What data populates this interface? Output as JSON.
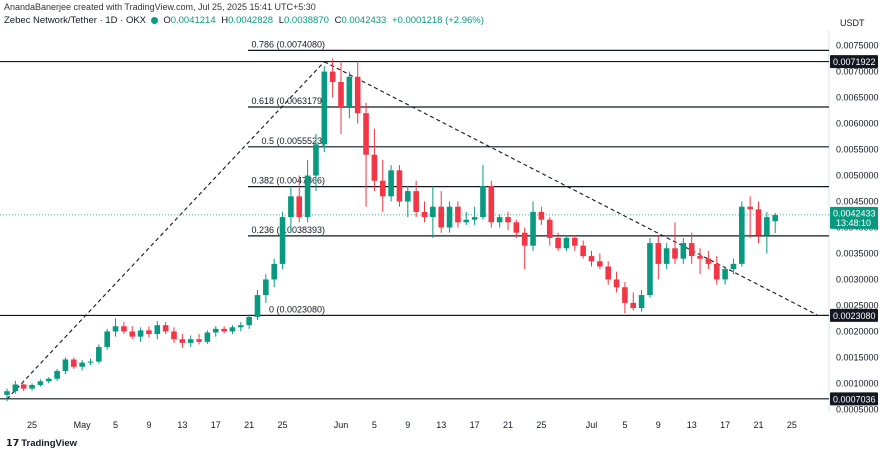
{
  "credit": "AnandaBanerjee created with TradingView.com, Jul 25, 2025 15:41 UTC+5:30",
  "header": {
    "symbol": "Zebec Network/Tether · 1D · OKX",
    "o_label": "O",
    "o": "0.0041214",
    "h_label": "H",
    "h": "0.0042828",
    "l_label": "L",
    "l": "0.0038870",
    "c_label": "C",
    "c": "0.0042433",
    "change": "+0.0001218 (+2.96%)"
  },
  "logo": "TradingView",
  "colors": {
    "up": "#089981",
    "down": "#f23645",
    "fib": "#131722",
    "trend": "#131722"
  },
  "chart_data": {
    "type": "candlestick",
    "currency": "USDT",
    "ylim": [
      0.00045,
      0.0078
    ],
    "y_ticks": [
      "0.0005000",
      "0.0010000",
      "0.0015000",
      "0.0020000",
      "0.0025000",
      "0.0030000",
      "0.0035000",
      "0.0040000",
      "0.0045000",
      "0.0050000",
      "0.0055000",
      "0.0060000",
      "0.0065000",
      "0.0070000",
      "0.0075000"
    ],
    "x_ticks": [
      {
        "label": "25",
        "i": 3
      },
      {
        "label": "May",
        "i": 9
      },
      {
        "label": "5",
        "i": 13
      },
      {
        "label": "9",
        "i": 17
      },
      {
        "label": "13",
        "i": 21
      },
      {
        "label": "17",
        "i": 25
      },
      {
        "label": "21",
        "i": 29
      },
      {
        "label": "25",
        "i": 33
      },
      {
        "label": "Jun",
        "i": 40
      },
      {
        "label": "5",
        "i": 44
      },
      {
        "label": "9",
        "i": 48
      },
      {
        "label": "13",
        "i": 52
      },
      {
        "label": "17",
        "i": 56
      },
      {
        "label": "21",
        "i": 60
      },
      {
        "label": "25",
        "i": 64
      },
      {
        "label": "Jul",
        "i": 70
      },
      {
        "label": "5",
        "i": 74
      },
      {
        "label": "9",
        "i": 78
      },
      {
        "label": "13",
        "i": 82
      },
      {
        "label": "17",
        "i": 86
      },
      {
        "label": "21",
        "i": 90
      },
      {
        "label": "25",
        "i": 94
      }
    ],
    "candles": [
      [
        0.00078,
        0.0009,
        0.00066,
        0.00085
      ],
      [
        0.00085,
        0.00105,
        0.0008,
        0.00098
      ],
      [
        0.00098,
        0.001,
        0.00085,
        0.0009
      ],
      [
        0.0009,
        0.001,
        0.00086,
        0.00097
      ],
      [
        0.00097,
        0.00108,
        0.00094,
        0.00104
      ],
      [
        0.00104,
        0.00112,
        0.001,
        0.00109
      ],
      [
        0.00109,
        0.00128,
        0.00105,
        0.00124
      ],
      [
        0.00124,
        0.0015,
        0.00118,
        0.00146
      ],
      [
        0.00146,
        0.0015,
        0.00128,
        0.00132
      ],
      [
        0.00132,
        0.00145,
        0.00125,
        0.0014
      ],
      [
        0.0014,
        0.00148,
        0.00135,
        0.00142
      ],
      [
        0.00142,
        0.00175,
        0.00138,
        0.0017
      ],
      [
        0.0017,
        0.00205,
        0.00165,
        0.002
      ],
      [
        0.002,
        0.00225,
        0.0019,
        0.0021
      ],
      [
        0.0021,
        0.00218,
        0.00195,
        0.002
      ],
      [
        0.002,
        0.0021,
        0.00185,
        0.0019
      ],
      [
        0.0019,
        0.00208,
        0.0018,
        0.00202
      ],
      [
        0.00202,
        0.0021,
        0.00188,
        0.00195
      ],
      [
        0.00195,
        0.0022,
        0.00185,
        0.00212
      ],
      [
        0.00212,
        0.00218,
        0.00195,
        0.002
      ],
      [
        0.002,
        0.00208,
        0.00178,
        0.00185
      ],
      [
        0.00185,
        0.00195,
        0.00168,
        0.00178
      ],
      [
        0.00178,
        0.00192,
        0.0017,
        0.00185
      ],
      [
        0.00185,
        0.00195,
        0.00175,
        0.0018
      ],
      [
        0.0018,
        0.00202,
        0.00176,
        0.00198
      ],
      [
        0.00198,
        0.0021,
        0.0019,
        0.00205
      ],
      [
        0.00205,
        0.0021,
        0.00196,
        0.002
      ],
      [
        0.002,
        0.00212,
        0.00195,
        0.00208
      ],
      [
        0.00208,
        0.00218,
        0.002,
        0.00212
      ],
      [
        0.00212,
        0.00232,
        0.00205,
        0.00228
      ],
      [
        0.00228,
        0.0028,
        0.00222,
        0.0027
      ],
      [
        0.0027,
        0.0031,
        0.00255,
        0.003
      ],
      [
        0.003,
        0.0034,
        0.00285,
        0.0033
      ],
      [
        0.0033,
        0.0043,
        0.0032,
        0.0042
      ],
      [
        0.0042,
        0.0048,
        0.0039,
        0.0046
      ],
      [
        0.0046,
        0.005,
        0.0041,
        0.0042
      ],
      [
        0.0042,
        0.0053,
        0.0041,
        0.005
      ],
      [
        0.005,
        0.0058,
        0.0047,
        0.0056
      ],
      [
        0.0056,
        0.0071,
        0.00545,
        0.007
      ],
      [
        0.007,
        0.00725,
        0.0065,
        0.0068
      ],
      [
        0.0068,
        0.0072,
        0.0058,
        0.0063
      ],
      [
        0.0063,
        0.007,
        0.0061,
        0.0069
      ],
      [
        0.0069,
        0.0072,
        0.006,
        0.0062
      ],
      [
        0.0062,
        0.0064,
        0.0044,
        0.0054
      ],
      [
        0.0054,
        0.0059,
        0.0047,
        0.0049
      ],
      [
        0.0049,
        0.0053,
        0.0043,
        0.0046
      ],
      [
        0.0046,
        0.0052,
        0.0045,
        0.0051
      ],
      [
        0.0051,
        0.0052,
        0.0044,
        0.0045
      ],
      [
        0.0045,
        0.0048,
        0.0042,
        0.0047
      ],
      [
        0.0047,
        0.0049,
        0.0042,
        0.0043
      ],
      [
        0.0043,
        0.0045,
        0.0041,
        0.0042
      ],
      [
        0.0042,
        0.0048,
        0.0038,
        0.0044
      ],
      [
        0.0044,
        0.0047,
        0.0039,
        0.004
      ],
      [
        0.004,
        0.0045,
        0.0039,
        0.0044
      ],
      [
        0.0044,
        0.0045,
        0.004,
        0.0041
      ],
      [
        0.0041,
        0.0043,
        0.00405,
        0.00415
      ],
      [
        0.00415,
        0.0044,
        0.00405,
        0.0042
      ],
      [
        0.0042,
        0.0052,
        0.00415,
        0.0048
      ],
      [
        0.0048,
        0.0049,
        0.004,
        0.0041
      ],
      [
        0.0041,
        0.00425,
        0.004,
        0.0042
      ],
      [
        0.0042,
        0.0043,
        0.00395,
        0.0041
      ],
      [
        0.0041,
        0.00415,
        0.0038,
        0.0039
      ],
      [
        0.0039,
        0.004,
        0.0032,
        0.00365
      ],
      [
        0.00365,
        0.0045,
        0.00355,
        0.0043
      ],
      [
        0.0043,
        0.0044,
        0.00405,
        0.00415
      ],
      [
        0.00415,
        0.0042,
        0.00365,
        0.0038
      ],
      [
        0.0038,
        0.0039,
        0.00355,
        0.0036
      ],
      [
        0.0036,
        0.00385,
        0.00355,
        0.0038
      ],
      [
        0.0038,
        0.00385,
        0.00355,
        0.00365
      ],
      [
        0.00365,
        0.00375,
        0.0034,
        0.00345
      ],
      [
        0.00345,
        0.00355,
        0.00325,
        0.00335
      ],
      [
        0.00335,
        0.0035,
        0.0032,
        0.00325
      ],
      [
        0.00325,
        0.00335,
        0.0029,
        0.003
      ],
      [
        0.003,
        0.00315,
        0.00275,
        0.00285
      ],
      [
        0.00285,
        0.00295,
        0.00235,
        0.00255
      ],
      [
        0.00255,
        0.00275,
        0.0024,
        0.00245
      ],
      [
        0.00245,
        0.0028,
        0.00238,
        0.0027
      ],
      [
        0.0027,
        0.0038,
        0.00265,
        0.0037
      ],
      [
        0.0037,
        0.00385,
        0.003,
        0.0033
      ],
      [
        0.0033,
        0.0037,
        0.0032,
        0.0036
      ],
      [
        0.0036,
        0.0041,
        0.0033,
        0.0034
      ],
      [
        0.0034,
        0.0038,
        0.0033,
        0.0037
      ],
      [
        0.0037,
        0.0039,
        0.0033,
        0.00345
      ],
      [
        0.00345,
        0.0036,
        0.0031,
        0.0034
      ],
      [
        0.0034,
        0.00355,
        0.0032,
        0.0033
      ],
      [
        0.0033,
        0.00345,
        0.0029,
        0.003
      ],
      [
        0.003,
        0.00325,
        0.0029,
        0.0032
      ],
      [
        0.0032,
        0.0034,
        0.0031,
        0.0033
      ],
      [
        0.0033,
        0.0045,
        0.00325,
        0.0044
      ],
      [
        0.0044,
        0.0046,
        0.0038,
        0.00435
      ],
      [
        0.00435,
        0.0045,
        0.0037,
        0.00385
      ],
      [
        0.00385,
        0.0043,
        0.0035,
        0.0042
      ],
      [
        0.00412,
        0.00428,
        0.00389,
        0.00424
      ]
    ],
    "fib_levels": [
      {
        "label": "0.786 (0.0074080)",
        "value": 0.007408
      },
      {
        "label": "0.618 (0.0063179)",
        "value": 0.0063179
      },
      {
        "label": "0.5 (0.0055523)",
        "value": 0.0055523
      },
      {
        "label": "0.382 (0.0047866)",
        "value": 0.0047866
      },
      {
        "label": "0.236 (0.0038393)",
        "value": 0.0038393
      },
      {
        "label": "0 (0.0023080)",
        "value": 0.002308
      }
    ],
    "horizontal_lines": [
      {
        "label": "0.0071922",
        "value": 0.0071922
      },
      {
        "label": "0.0023080",
        "value": 0.002308
      },
      {
        "label": "0.0007036",
        "value": 0.0007036
      }
    ],
    "trend_lines": [
      {
        "from": {
          "i": 0,
          "y": 0.0007
        },
        "to": {
          "i": 38,
          "y": 0.00719
        }
      },
      {
        "from": {
          "i": 38,
          "y": 0.00719
        },
        "to": {
          "i": 97,
          "y": 0.00232
        }
      }
    ],
    "last_price": {
      "value": 0.0042433,
      "label": "0.0042433",
      "countdown": "13:48:10"
    }
  }
}
